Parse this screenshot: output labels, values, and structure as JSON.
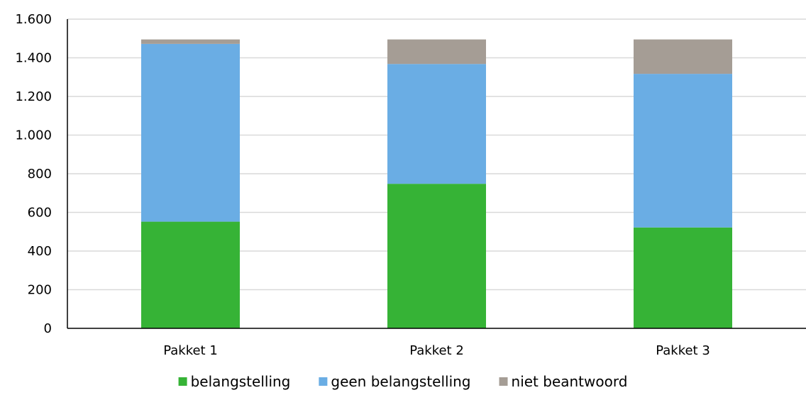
{
  "chart_data": {
    "type": "bar",
    "stacked": true,
    "title": "",
    "xlabel": "",
    "ylabel": "",
    "categories": [
      "Pakket 1",
      "Pakket 2",
      "Pakket 3"
    ],
    "series": [
      {
        "name": "belangstelling",
        "color": "#36b336",
        "values": [
          552,
          748,
          522
        ]
      },
      {
        "name": "geen belangstelling",
        "color": "#6aade4",
        "values": [
          920,
          620,
          795
        ]
      },
      {
        "name": "niet beantwoord",
        "color": "#a59d95",
        "values": [
          23,
          127,
          178
        ]
      }
    ],
    "ylim": [
      0,
      1600
    ],
    "yticks": [
      0,
      200,
      400,
      600,
      800,
      1000,
      1200,
      1400,
      1600
    ],
    "ytick_labels": [
      "0",
      "200",
      "400",
      "600",
      "800",
      "1.000",
      "1.200",
      "1.400",
      "1.600"
    ],
    "grid": true,
    "legend_position": "bottom"
  }
}
